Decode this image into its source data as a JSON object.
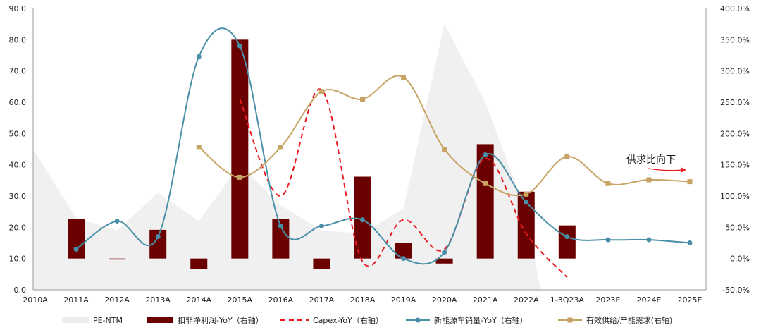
{
  "chart_data": {
    "type": "combo",
    "categories": [
      "2010A",
      "2011A",
      "2012A",
      "2013A",
      "2014A",
      "2015A",
      "2016A",
      "2017A",
      "2018A",
      "2019A",
      "2020A",
      "2021A",
      "2022A",
      "1-3Q23A",
      "2023E",
      "2024E",
      "2025E"
    ],
    "left_axis": {
      "ticks": [
        "0.0",
        "10.0",
        "20.0",
        "30.0",
        "40.0",
        "50.0",
        "60.0",
        "70.0",
        "80.0",
        "90.0"
      ],
      "min": 0,
      "max": 90
    },
    "right_axis": {
      "ticks": [
        "-50.0%",
        "0.0%",
        "50.0%",
        "100.0%",
        "150.0%",
        "200.0%",
        "250.0%",
        "300.0%",
        "350.0%",
        "400.0%"
      ],
      "min": -50,
      "max": 400
    },
    "series": [
      {
        "name": "PE-NTM",
        "kind": "area",
        "axis": "left",
        "color": "#f0f0f0",
        "values": [
          45,
          23,
          19,
          31,
          22,
          40,
          27,
          19,
          18,
          26,
          85,
          60,
          25,
          null,
          null,
          null,
          null
        ]
      },
      {
        "name": "扣非净利润-YoY（右轴）",
        "kind": "bar",
        "axis": "right",
        "color": "#6b0000",
        "values": [
          null,
          63,
          -1,
          46,
          -17,
          350,
          63,
          -17,
          131,
          25,
          -8,
          183,
          107,
          53,
          null,
          null,
          null
        ]
      },
      {
        "name": "Capex-YoY（右轴）",
        "kind": "line-dashed",
        "axis": "right",
        "color": "#e8191f",
        "values": [
          null,
          null,
          null,
          null,
          null,
          255,
          100,
          270,
          -5,
          62,
          15,
          160,
          40,
          -30,
          null,
          null,
          null
        ]
      },
      {
        "name": "新能源车销量-YoY（右轴）",
        "kind": "line-marker",
        "axis": "right",
        "color": "#4a8fa8",
        "marker": "circle",
        "values": [
          null,
          15,
          60,
          35,
          323,
          340,
          52,
          52,
          62,
          0,
          10,
          166,
          90,
          35,
          30,
          30,
          25
        ]
      },
      {
        "name": "有效供给/产能需求(右轴)",
        "kind": "line-marker",
        "axis": "right",
        "color": "#c8a464",
        "marker": "square",
        "values": [
          null,
          null,
          null,
          null,
          178,
          130,
          178,
          267,
          255,
          290,
          175,
          120,
          103,
          163,
          120,
          126,
          123
        ]
      }
    ],
    "annotations": [
      {
        "text": "供求比向下",
        "arrow_color": "#e8191f"
      }
    ]
  }
}
